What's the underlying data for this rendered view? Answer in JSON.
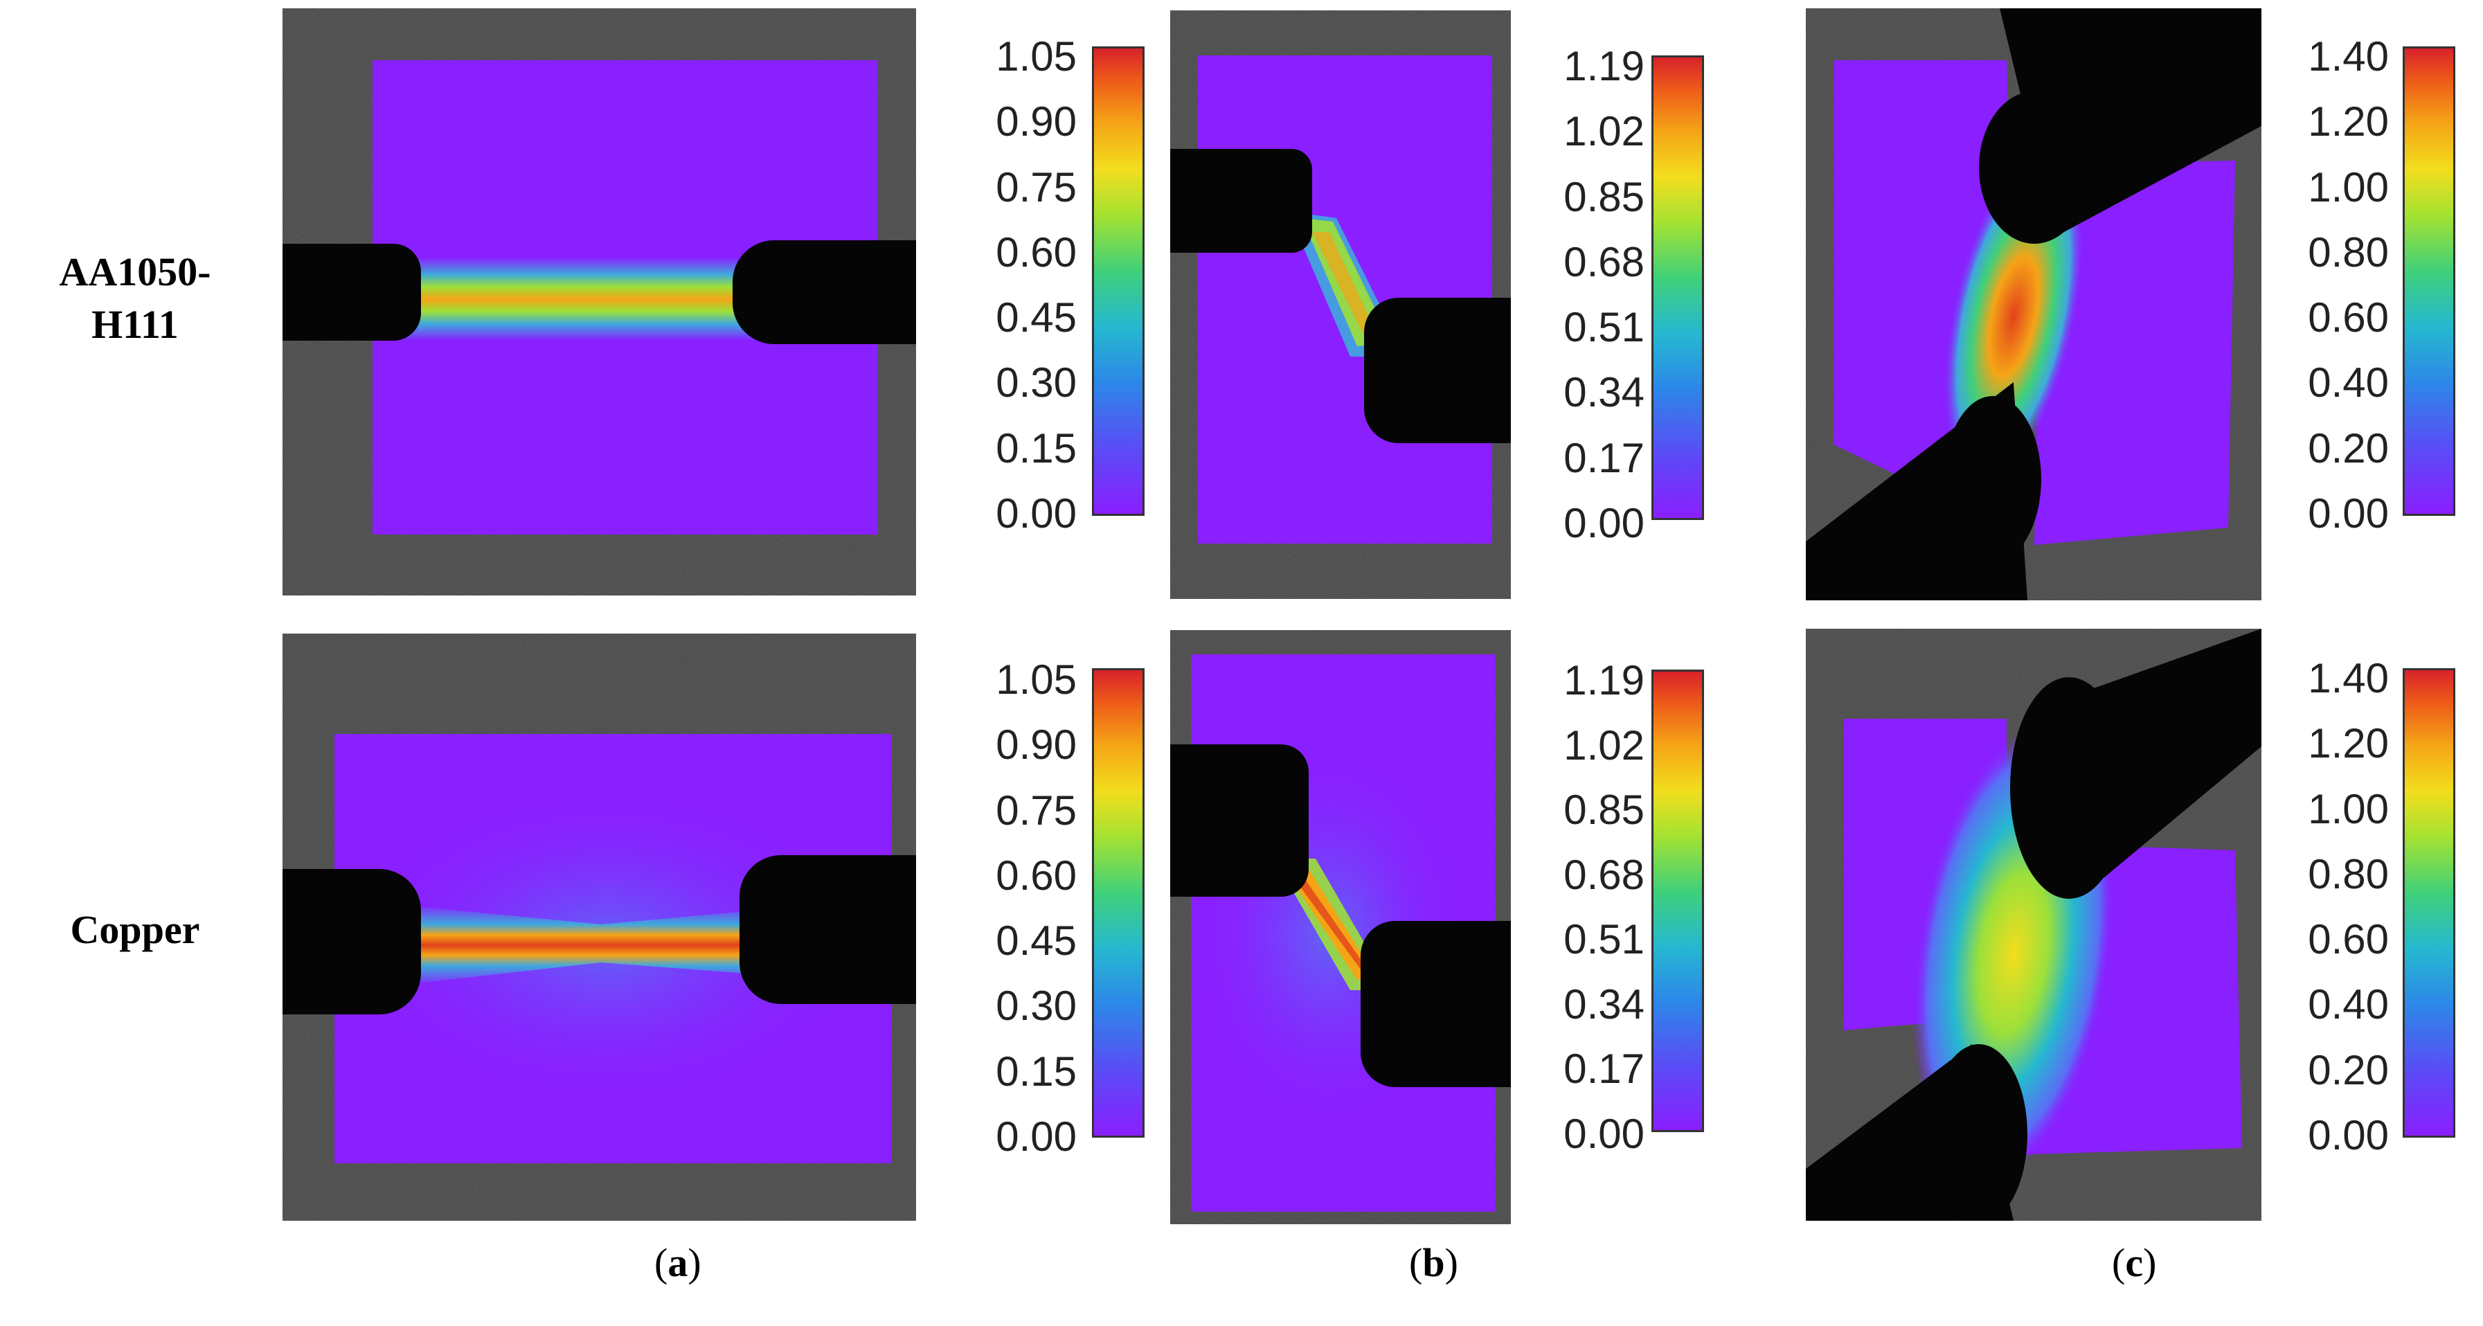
{
  "rows": [
    "AA1050-H111",
    "Copper"
  ],
  "row_label_lines": [
    [
      "AA1050-",
      "H111"
    ],
    [
      "Copper"
    ]
  ],
  "colorbars": [
    {
      "column": "a",
      "ticks": [
        "1.05",
        "0.90",
        "0.75",
        "0.60",
        "0.45",
        "0.30",
        "0.15",
        "0.00"
      ]
    },
    {
      "column": "b",
      "ticks": [
        "1.19",
        "1.02",
        "0.85",
        "0.68",
        "0.51",
        "0.34",
        "0.17",
        "0.00"
      ]
    },
    {
      "column": "c",
      "ticks": [
        "1.40",
        "1.20",
        "1.00",
        "0.80",
        "0.60",
        "0.40",
        "0.20",
        "0.00"
      ]
    }
  ],
  "captions": [
    {
      "open": "(",
      "letter": "a",
      "close": ")"
    },
    {
      "open": "(",
      "letter": "b",
      "close": ")"
    },
    {
      "open": "(",
      "letter": "c",
      "close": ")"
    }
  ],
  "colors": {
    "background_speckle": "#3b3b3b",
    "grip": "#050505",
    "low": "#8a1fff",
    "mid": "#3fd07a",
    "high": "#d8222a"
  }
}
